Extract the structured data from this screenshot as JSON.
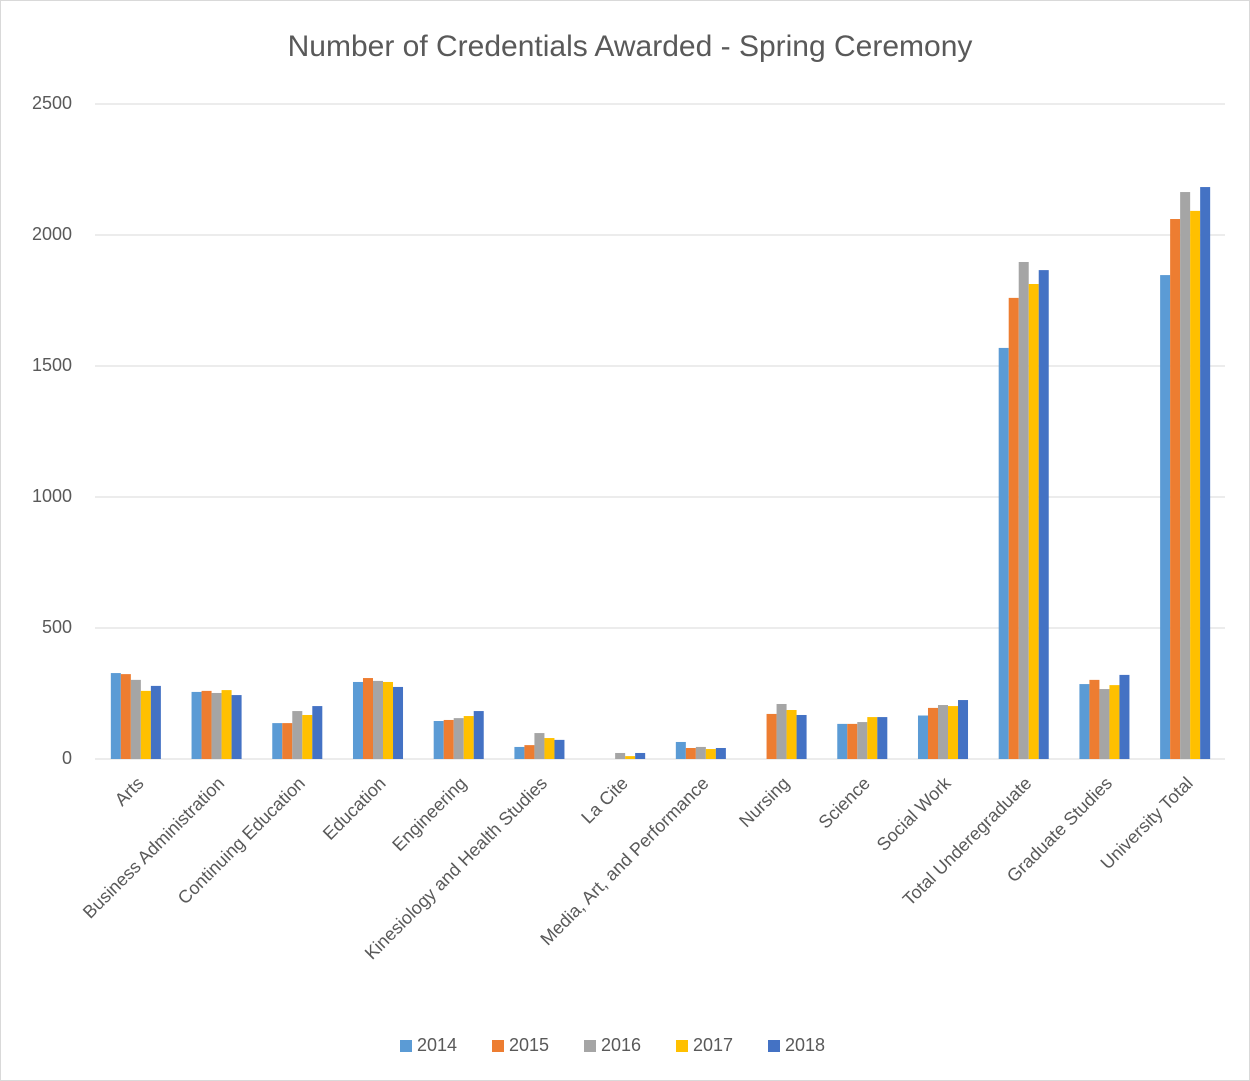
{
  "chart_data": {
    "type": "bar",
    "title": "Number of Credentials Awarded - Spring Ceremony",
    "categories": [
      "Arts",
      "Business Administration",
      "Continuing Education",
      "Education",
      "Engineering",
      "Kinesiology and Health Studies",
      "La Cite",
      "Media, Art, and Performance",
      "Nursing",
      "Science",
      "Social Work",
      "Total Underegraduate",
      "Graduate Studies",
      "University Total"
    ],
    "series": [
      {
        "name": "2014",
        "color": "#5b9bd5",
        "values": [
          328,
          256,
          137,
          294,
          145,
          46,
          null,
          65,
          null,
          134,
          166,
          1569,
          286,
          1847
        ]
      },
      {
        "name": "2015",
        "color": "#ed7d31",
        "values": [
          324,
          260,
          137,
          309,
          149,
          53,
          null,
          42,
          172,
          134,
          195,
          1760,
          302,
          2061
        ]
      },
      {
        "name": "2016",
        "color": "#a5a5a5",
        "values": [
          302,
          252,
          183,
          298,
          156,
          99,
          23,
          46,
          210,
          141,
          206,
          1897,
          267,
          2164
        ]
      },
      {
        "name": "2017",
        "color": "#ffc000",
        "values": [
          260,
          263,
          168,
          294,
          164,
          80,
          11,
          38,
          187,
          160,
          202,
          1813,
          282,
          2092
        ]
      },
      {
        "name": "2018",
        "color": "#4472c4",
        "values": [
          279,
          244,
          202,
          275,
          183,
          73,
          23,
          42,
          168,
          160,
          225,
          1866,
          321,
          2183
        ]
      }
    ],
    "ylim": [
      0,
      2500
    ],
    "yticks": [
      0,
      500,
      1000,
      1500,
      2000,
      2500
    ],
    "grid": true,
    "legend": "bottom"
  }
}
